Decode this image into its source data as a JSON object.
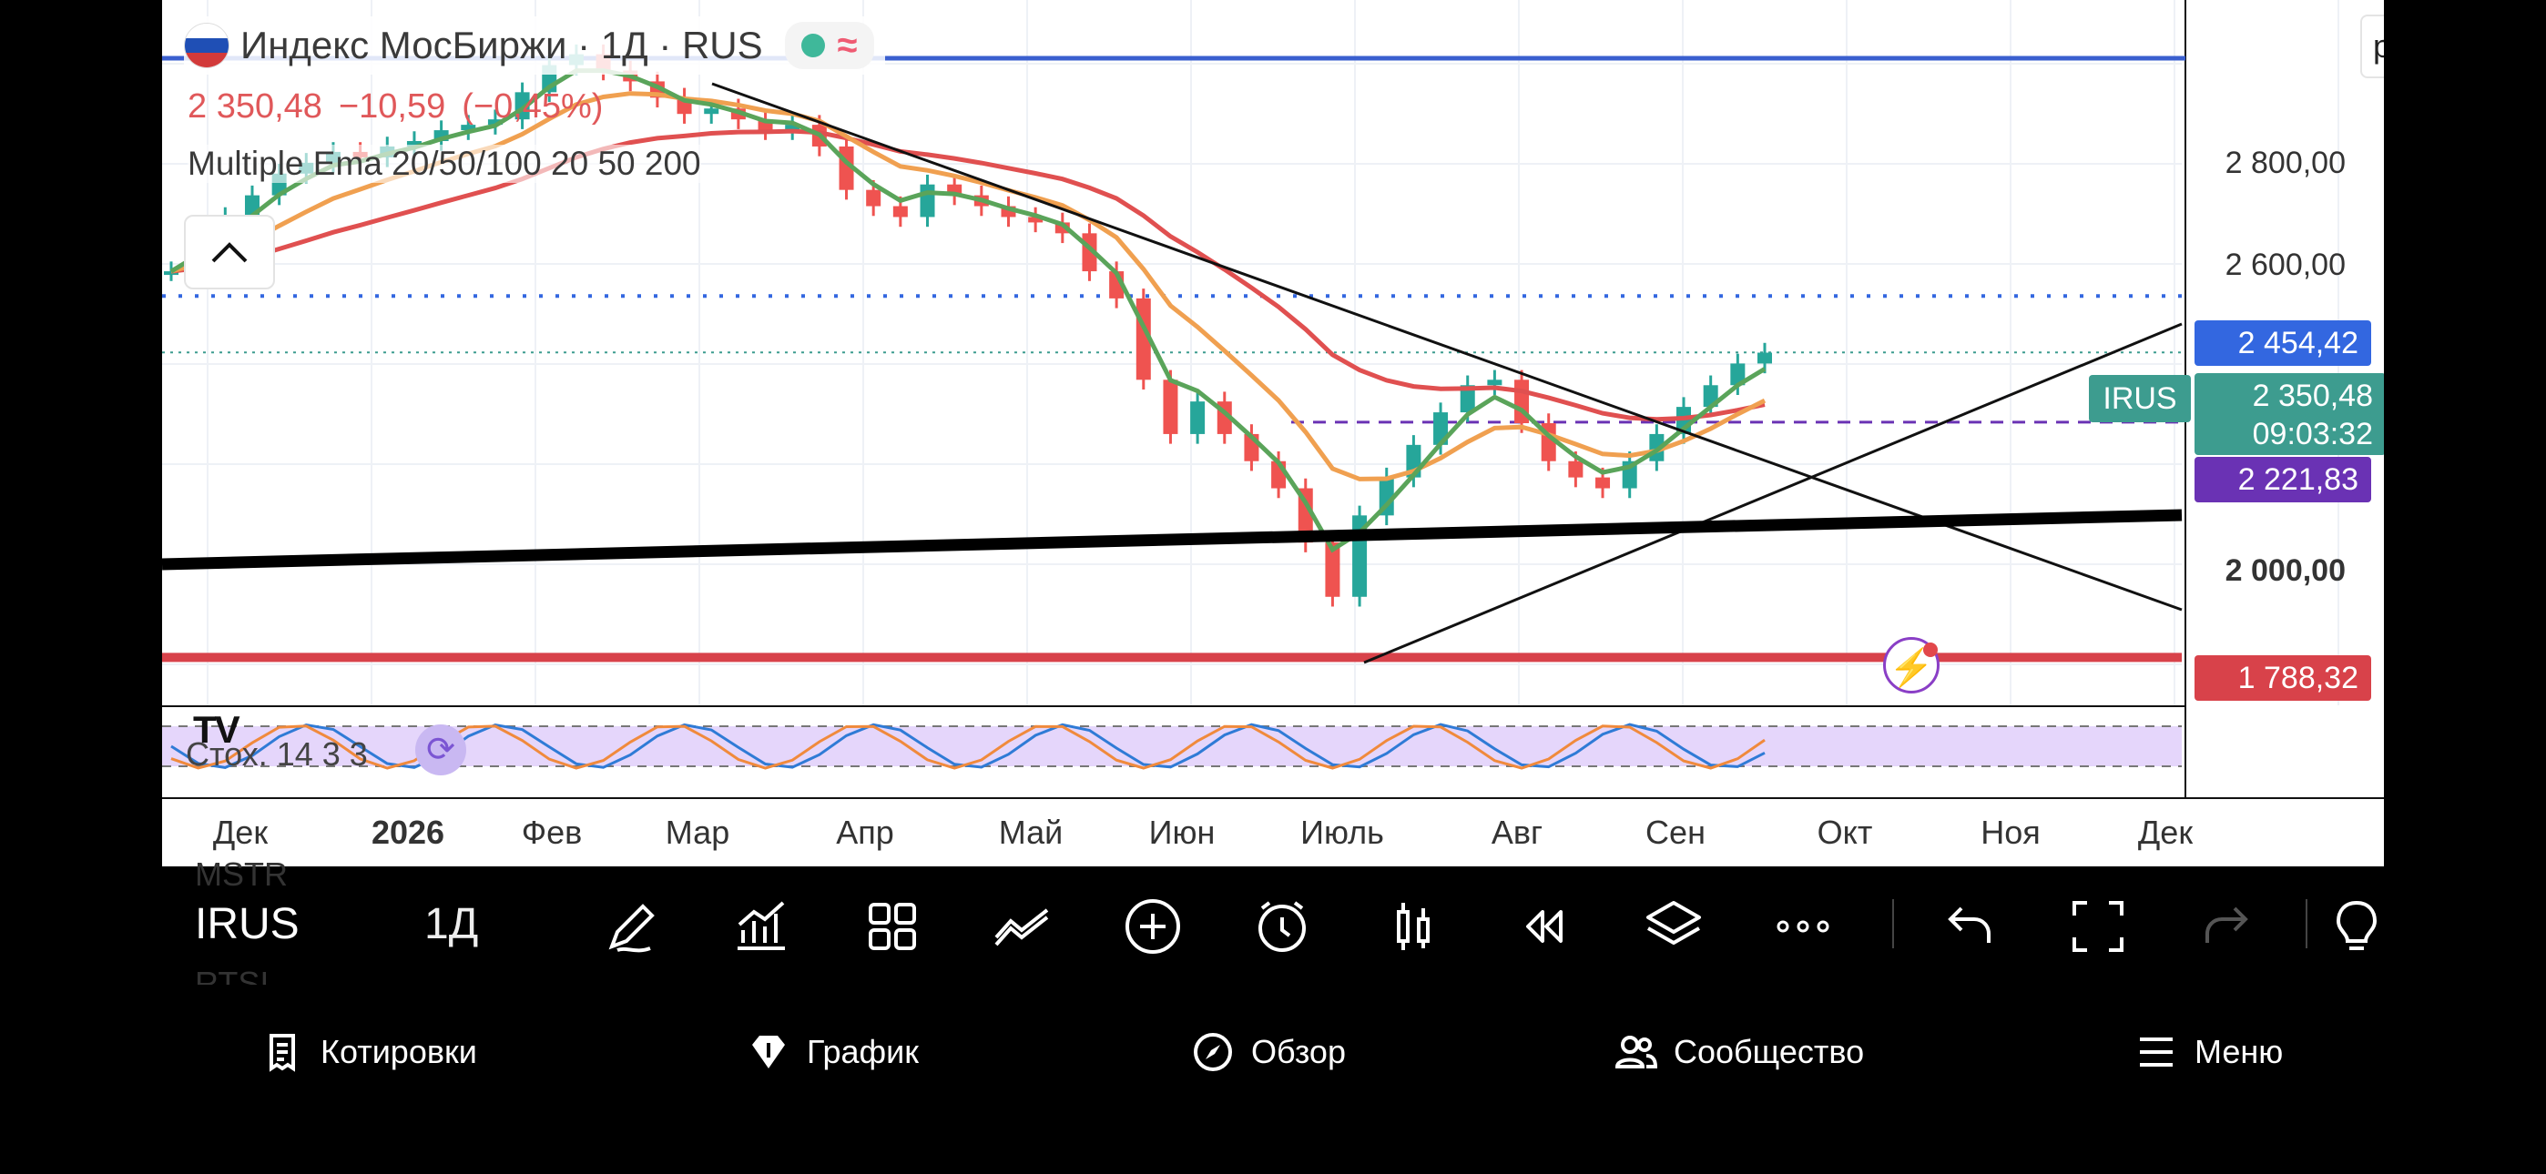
{
  "symbol": {
    "title": "Индекс МосБиржи · 1Д · RUS",
    "price": "2 350,48",
    "change": "−10,59",
    "change_pct": "(−0,45%)",
    "indicator_label": "Multiple Ema 20/50/100 20 50 200",
    "oscillator_label": "Стох. 14 3 3",
    "tv_logo": "TV"
  },
  "interval_input": {
    "value": "point"
  },
  "price_scale": {
    "labels": [
      "2 800,00",
      "2 600,00",
      "2 000,00"
    ],
    "badges": [
      {
        "text": "2 454,42",
        "color": "#3367e0"
      },
      {
        "text": "2 221,83",
        "color": "#6a32b4"
      },
      {
        "text": "1 788,32",
        "color": "#d8424a"
      }
    ],
    "current": {
      "ticker": "IRUS",
      "price": "2 350,48",
      "countdown": "09:03:32",
      "color": "#3d9c8f"
    }
  },
  "time_axis": {
    "labels": [
      "Дек",
      "2026",
      "Фев",
      "Мар",
      "Апр",
      "Май",
      "Июн",
      "Июль",
      "Авг",
      "Сен",
      "Окт",
      "Ноя",
      "Дек"
    ]
  },
  "chart_data": {
    "type": "candlestick",
    "series": [
      {
        "name": "IRUS",
        "values": [
          2500,
          2560,
          2600,
          2640,
          2680,
          2700,
          2720,
          2710,
          2730,
          2740,
          2760,
          2770,
          2780,
          2830,
          2880,
          2900,
          2870,
          2850,
          2820,
          2790,
          2800,
          2780,
          2760,
          2770,
          2730,
          2650,
          2620,
          2600,
          2660,
          2640,
          2620,
          2600,
          2590,
          2570,
          2500,
          2450,
          2300,
          2200,
          2260,
          2200,
          2150,
          2100,
          2000,
          1900,
          2050,
          2120,
          2180,
          2240,
          2290,
          2300,
          2220,
          2150,
          2120,
          2100,
          2150,
          2200,
          2250,
          2290,
          2330,
          2350
        ]
      }
    ],
    "overlays": {
      "ema_colors": {
        "ema20": "#5aa45a",
        "ema50": "#f0a050",
        "ema200": "#e05050"
      },
      "horizontal_levels": [
        2454.42,
        2221.83,
        1788.32
      ]
    },
    "ylim": [
      1700,
      3000
    ]
  },
  "toolbar": {
    "symbol": "IRUS",
    "interval": "1Д",
    "ghost_above": "MSTR",
    "ghost_below": "RTSI",
    "icons": [
      "pen-icon",
      "indicators-icon",
      "layouts-icon",
      "drawings-icon",
      "add-icon",
      "alert-icon",
      "bar-style-icon",
      "replay-icon",
      "layers-icon",
      "more-icon",
      "undo-icon",
      "fullscreen-icon",
      "redo-icon"
    ]
  },
  "nav": {
    "items": [
      {
        "label": "Котировки",
        "icon": "quotes-icon"
      },
      {
        "label": "График",
        "icon": "chart-icon"
      },
      {
        "label": "Обзор",
        "icon": "compass-icon"
      },
      {
        "label": "Сообщество",
        "icon": "people-icon"
      },
      {
        "label": "Меню",
        "icon": "menu-icon"
      }
    ]
  }
}
